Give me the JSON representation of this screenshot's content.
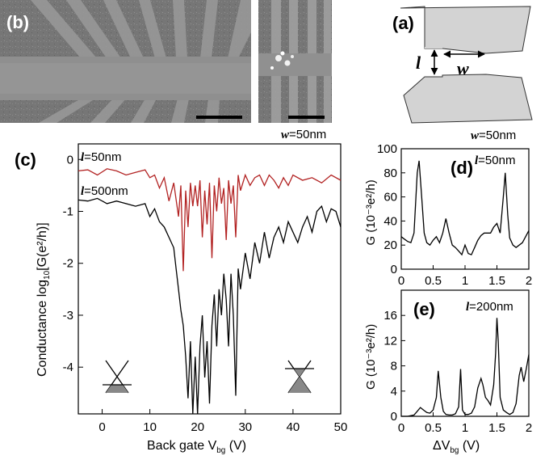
{
  "panels": {
    "a": {
      "label": "(a)",
      "length_symbol": "l",
      "width_symbol": "w"
    },
    "b": {
      "label": "(b)"
    },
    "c": {
      "label": "(c)"
    },
    "d": {
      "label": "(d)"
    },
    "e": {
      "label": "(e)"
    }
  },
  "chart_data": [
    {
      "id": "c",
      "type": "line",
      "xlabel": "Back gate V",
      "xlabel_sub": "bg",
      "xlabel_unit": " (V)",
      "ylabel": "Conductance log",
      "ylabel_sub": "10",
      "ylabel_unit": "[G(e²/h)]",
      "xlim": [
        -5,
        50
      ],
      "ylim": [
        -4.9,
        0.3
      ],
      "xticks": [
        0,
        10,
        20,
        30,
        40,
        50
      ],
      "yticks": [
        0,
        -1,
        -2,
        -3,
        -4
      ],
      "annotation": {
        "sym": "w",
        "text": "=50nm"
      },
      "series": [
        {
          "sym": "l",
          "name": "=50nm",
          "color": "#b22222",
          "x": [
            -5,
            -3,
            -1,
            1,
            3,
            5,
            7,
            9,
            10,
            11,
            12,
            13,
            14,
            15,
            16,
            16.5,
            17,
            17.5,
            18,
            18.5,
            19,
            19.5,
            20,
            20.5,
            21,
            21.5,
            22,
            22.5,
            23,
            23.5,
            24,
            24.5,
            25,
            25.5,
            26,
            26.5,
            27,
            27.5,
            28,
            28.5,
            29,
            30,
            31,
            32,
            33,
            34,
            35,
            36,
            37,
            38,
            39,
            40,
            42,
            44,
            46,
            48,
            50
          ],
          "y": [
            -0.22,
            -0.2,
            -0.3,
            -0.18,
            -0.22,
            -0.3,
            -0.25,
            -0.2,
            -0.35,
            -0.3,
            -0.55,
            -0.35,
            -0.8,
            -0.45,
            -1.1,
            -0.5,
            -2.15,
            -0.6,
            -1.3,
            -0.45,
            -0.9,
            -0.5,
            -0.9,
            -0.4,
            -1.5,
            -0.6,
            -1.25,
            -0.45,
            -1.9,
            -0.5,
            -1.0,
            -0.35,
            -0.85,
            -0.55,
            -1.55,
            -0.4,
            -0.85,
            -0.5,
            -1.5,
            -0.3,
            -0.6,
            -0.3,
            -0.5,
            -0.35,
            -0.3,
            -0.5,
            -0.3,
            -0.4,
            -0.55,
            -0.35,
            -0.5,
            -0.3,
            -0.4,
            -0.35,
            -0.45,
            -0.3,
            -0.4
          ]
        },
        {
          "sym": "l",
          "name": "=500nm",
          "color": "#000000",
          "x": [
            -5,
            -3,
            -1,
            1,
            3,
            5,
            7,
            9,
            10,
            11,
            12,
            13,
            14,
            15,
            15.5,
            16,
            16.5,
            17,
            17.5,
            18,
            18.5,
            19,
            19.5,
            20,
            20.5,
            21,
            21.5,
            22,
            22.5,
            23,
            23.5,
            24,
            24.5,
            25,
            25.5,
            26,
            26.5,
            27,
            27.5,
            28,
            28.5,
            29,
            30,
            31,
            32,
            33,
            34,
            35,
            36,
            37,
            38,
            39,
            40,
            41,
            42,
            43,
            44,
            45,
            46,
            47,
            48,
            49,
            50
          ],
          "y": [
            -0.78,
            -0.8,
            -0.75,
            -0.85,
            -0.8,
            -0.85,
            -0.9,
            -0.85,
            -1.1,
            -0.95,
            -1.2,
            -1.3,
            -1.5,
            -1.7,
            -2.1,
            -2.5,
            -2.9,
            -3.2,
            -3.8,
            -4.6,
            -3.5,
            -4.9,
            -3.8,
            -4.9,
            -3.6,
            -3.0,
            -4.2,
            -3.5,
            -4.7,
            -3.2,
            -2.6,
            -3.6,
            -2.5,
            -3.0,
            -2.2,
            -2.7,
            -3.6,
            -2.2,
            -3.0,
            -4.55,
            -2.1,
            -2.5,
            -1.8,
            -2.3,
            -1.6,
            -2.0,
            -1.4,
            -1.9,
            -1.5,
            -1.3,
            -1.6,
            -1.2,
            -1.4,
            -1.6,
            -1.3,
            -1.1,
            -1.4,
            -1.0,
            -0.9,
            -1.2,
            -0.95,
            -1.0,
            -1.3
          ]
        }
      ]
    },
    {
      "id": "d",
      "type": "line",
      "ylabel": "G",
      "ylabel_unit": "(10⁻³e²/h)",
      "xlim": [
        0,
        2
      ],
      "ylim": [
        0,
        100
      ],
      "xticks": [
        0,
        0.5,
        1,
        1.5,
        2
      ],
      "xtick_labels": [
        "0",
        "0.5",
        "1",
        "1.5",
        "2"
      ],
      "yticks": [
        0,
        20,
        40,
        60,
        80,
        100
      ],
      "annotation_top": {
        "sym": "w",
        "text": "=50nm"
      },
      "annotation": {
        "sym": "l",
        "text": "=50nm"
      },
      "series": [
        {
          "color": "#000000",
          "x": [
            0,
            0.05,
            0.1,
            0.15,
            0.2,
            0.25,
            0.28,
            0.32,
            0.36,
            0.4,
            0.45,
            0.5,
            0.55,
            0.6,
            0.65,
            0.7,
            0.75,
            0.8,
            0.85,
            0.9,
            0.95,
            1.0,
            1.05,
            1.1,
            1.15,
            1.2,
            1.25,
            1.3,
            1.35,
            1.4,
            1.45,
            1.5,
            1.55,
            1.6,
            1.63,
            1.67,
            1.7,
            1.75,
            1.8,
            1.85,
            1.9,
            1.95,
            2.0
          ],
          "y": [
            27,
            25,
            23,
            22,
            30,
            80,
            90,
            60,
            30,
            22,
            20,
            24,
            27,
            22,
            30,
            42,
            30,
            20,
            18,
            15,
            12,
            20,
            13,
            12,
            18,
            24,
            28,
            30,
            30,
            30,
            35,
            38,
            30,
            60,
            80,
            45,
            26,
            20,
            18,
            20,
            22,
            27,
            32
          ]
        }
      ]
    },
    {
      "id": "e",
      "type": "line",
      "xlabel": "ΔV",
      "xlabel_sub": "bg",
      "xlabel_unit": " (V)",
      "ylabel": "G",
      "ylabel_unit": "(10⁻³e²/h)",
      "xlim": [
        0,
        2
      ],
      "ylim": [
        0,
        20
      ],
      "xticks": [
        0,
        0.5,
        1,
        1.5,
        2
      ],
      "xtick_labels": [
        "0",
        "0.5",
        "1",
        "1.5",
        "2"
      ],
      "yticks": [
        0,
        4,
        8,
        12,
        16
      ],
      "annotation": {
        "sym": "l",
        "text": "=200nm"
      },
      "series": [
        {
          "color": "#000000",
          "x": [
            0,
            0.1,
            0.2,
            0.25,
            0.3,
            0.35,
            0.4,
            0.45,
            0.5,
            0.55,
            0.58,
            0.62,
            0.66,
            0.7,
            0.75,
            0.8,
            0.85,
            0.9,
            0.93,
            0.96,
            1.0,
            1.05,
            1.1,
            1.15,
            1.2,
            1.25,
            1.28,
            1.32,
            1.36,
            1.4,
            1.45,
            1.48,
            1.5,
            1.52,
            1.55,
            1.6,
            1.65,
            1.7,
            1.75,
            1.8,
            1.85,
            1.88,
            1.92,
            1.96,
            2.0
          ],
          "y": [
            0,
            0,
            0.2,
            0.8,
            1.4,
            1.0,
            0.6,
            0.5,
            1.0,
            3.0,
            7.2,
            3.0,
            0.8,
            0.3,
            0.2,
            0.2,
            0.4,
            1.5,
            7.5,
            1.0,
            0.3,
            0.3,
            0.5,
            1.5,
            4.5,
            6.0,
            5.0,
            3.0,
            2.5,
            1.8,
            5.0,
            10.0,
            15.6,
            12.0,
            3.0,
            1.0,
            0.6,
            0.3,
            0.6,
            2.0,
            6.5,
            7.8,
            5.5,
            7.5,
            9.8
          ]
        }
      ]
    }
  ]
}
